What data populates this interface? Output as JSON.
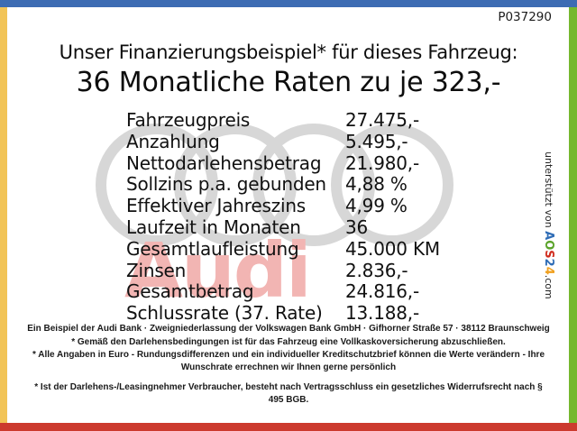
{
  "page": {
    "ref_number": "P037290"
  },
  "header": {
    "line1": "Unser Finanzierungsbeispiel* für dieses Fahrzeug:",
    "line2": "36 Monatliche Raten zu je 323,-"
  },
  "financing_table": {
    "rows": [
      {
        "label": "Fahrzeugpreis",
        "value": "27.475,-"
      },
      {
        "label": "Anzahlung",
        "value": "5.495,-"
      },
      {
        "label": "Nettodarlehensbetrag",
        "value": "21.980,-"
      },
      {
        "label": "Sollzins p.a. gebunden",
        "value": "4,88 %"
      },
      {
        "label": "Effektiver Jahreszins",
        "value": "4,99 %"
      },
      {
        "label": "Laufzeit in Monaten",
        "value": "36"
      },
      {
        "label": "Gesamtlaufleistung",
        "value": "45.000 KM"
      },
      {
        "label": "Zinsen",
        "value": "2.836,-"
      },
      {
        "label": "Gesamtbetrag",
        "value": "24.816,-"
      },
      {
        "label": "Schlussrate (37. Rate)",
        "value": "13.188,-"
      }
    ]
  },
  "watermark": {
    "wordmark": "Audi",
    "wordmark_color": "#f2b5b3",
    "rings_color": "#d7d7d7"
  },
  "supporter": {
    "prefix": "unterstützt von ",
    "logo": [
      {
        "char": "A",
        "color": "#2e6cb6"
      },
      {
        "char": "O",
        "color": "#5aa329"
      },
      {
        "char": "S",
        "color": "#d02c1e"
      },
      {
        "char": "2",
        "color": "#2e6cb6"
      },
      {
        "char": "4",
        "color": "#f0a01e"
      }
    ],
    "suffix": ".com"
  },
  "footer": {
    "paragraphs": [
      {
        "text": "Ein Beispiel der Audi Bank · Zweigniederlassung der Volkswagen Bank GmbH · Gifhorner Straße 57 · 38112 Braunschweig",
        "gap_before": false
      },
      {
        "text": "* Gemäß den Darlehensbedingungen ist für das Fahrzeug eine Vollkaskoversicherung abzuschließen.",
        "gap_before": false
      },
      {
        "text": "* Alle Angaben in Euro - Rundungsdifferenzen und ein individueller Kreditschutzbrief können die Werte verändern - Ihre Wunschrate errechnen wir Ihnen gerne persönlich",
        "gap_before": false
      },
      {
        "text": "* Ist der Darlehens-/Leasingnehmer Verbraucher, besteht nach Vertragsschluss ein gesetzliches Widerrufsrecht nach § 495 BGB.",
        "gap_before": true
      }
    ]
  },
  "frame_colors": {
    "top": "#3d6cb3",
    "left": "#f2c457",
    "right": "#76b82e",
    "bottom": "#cc3a2e"
  }
}
